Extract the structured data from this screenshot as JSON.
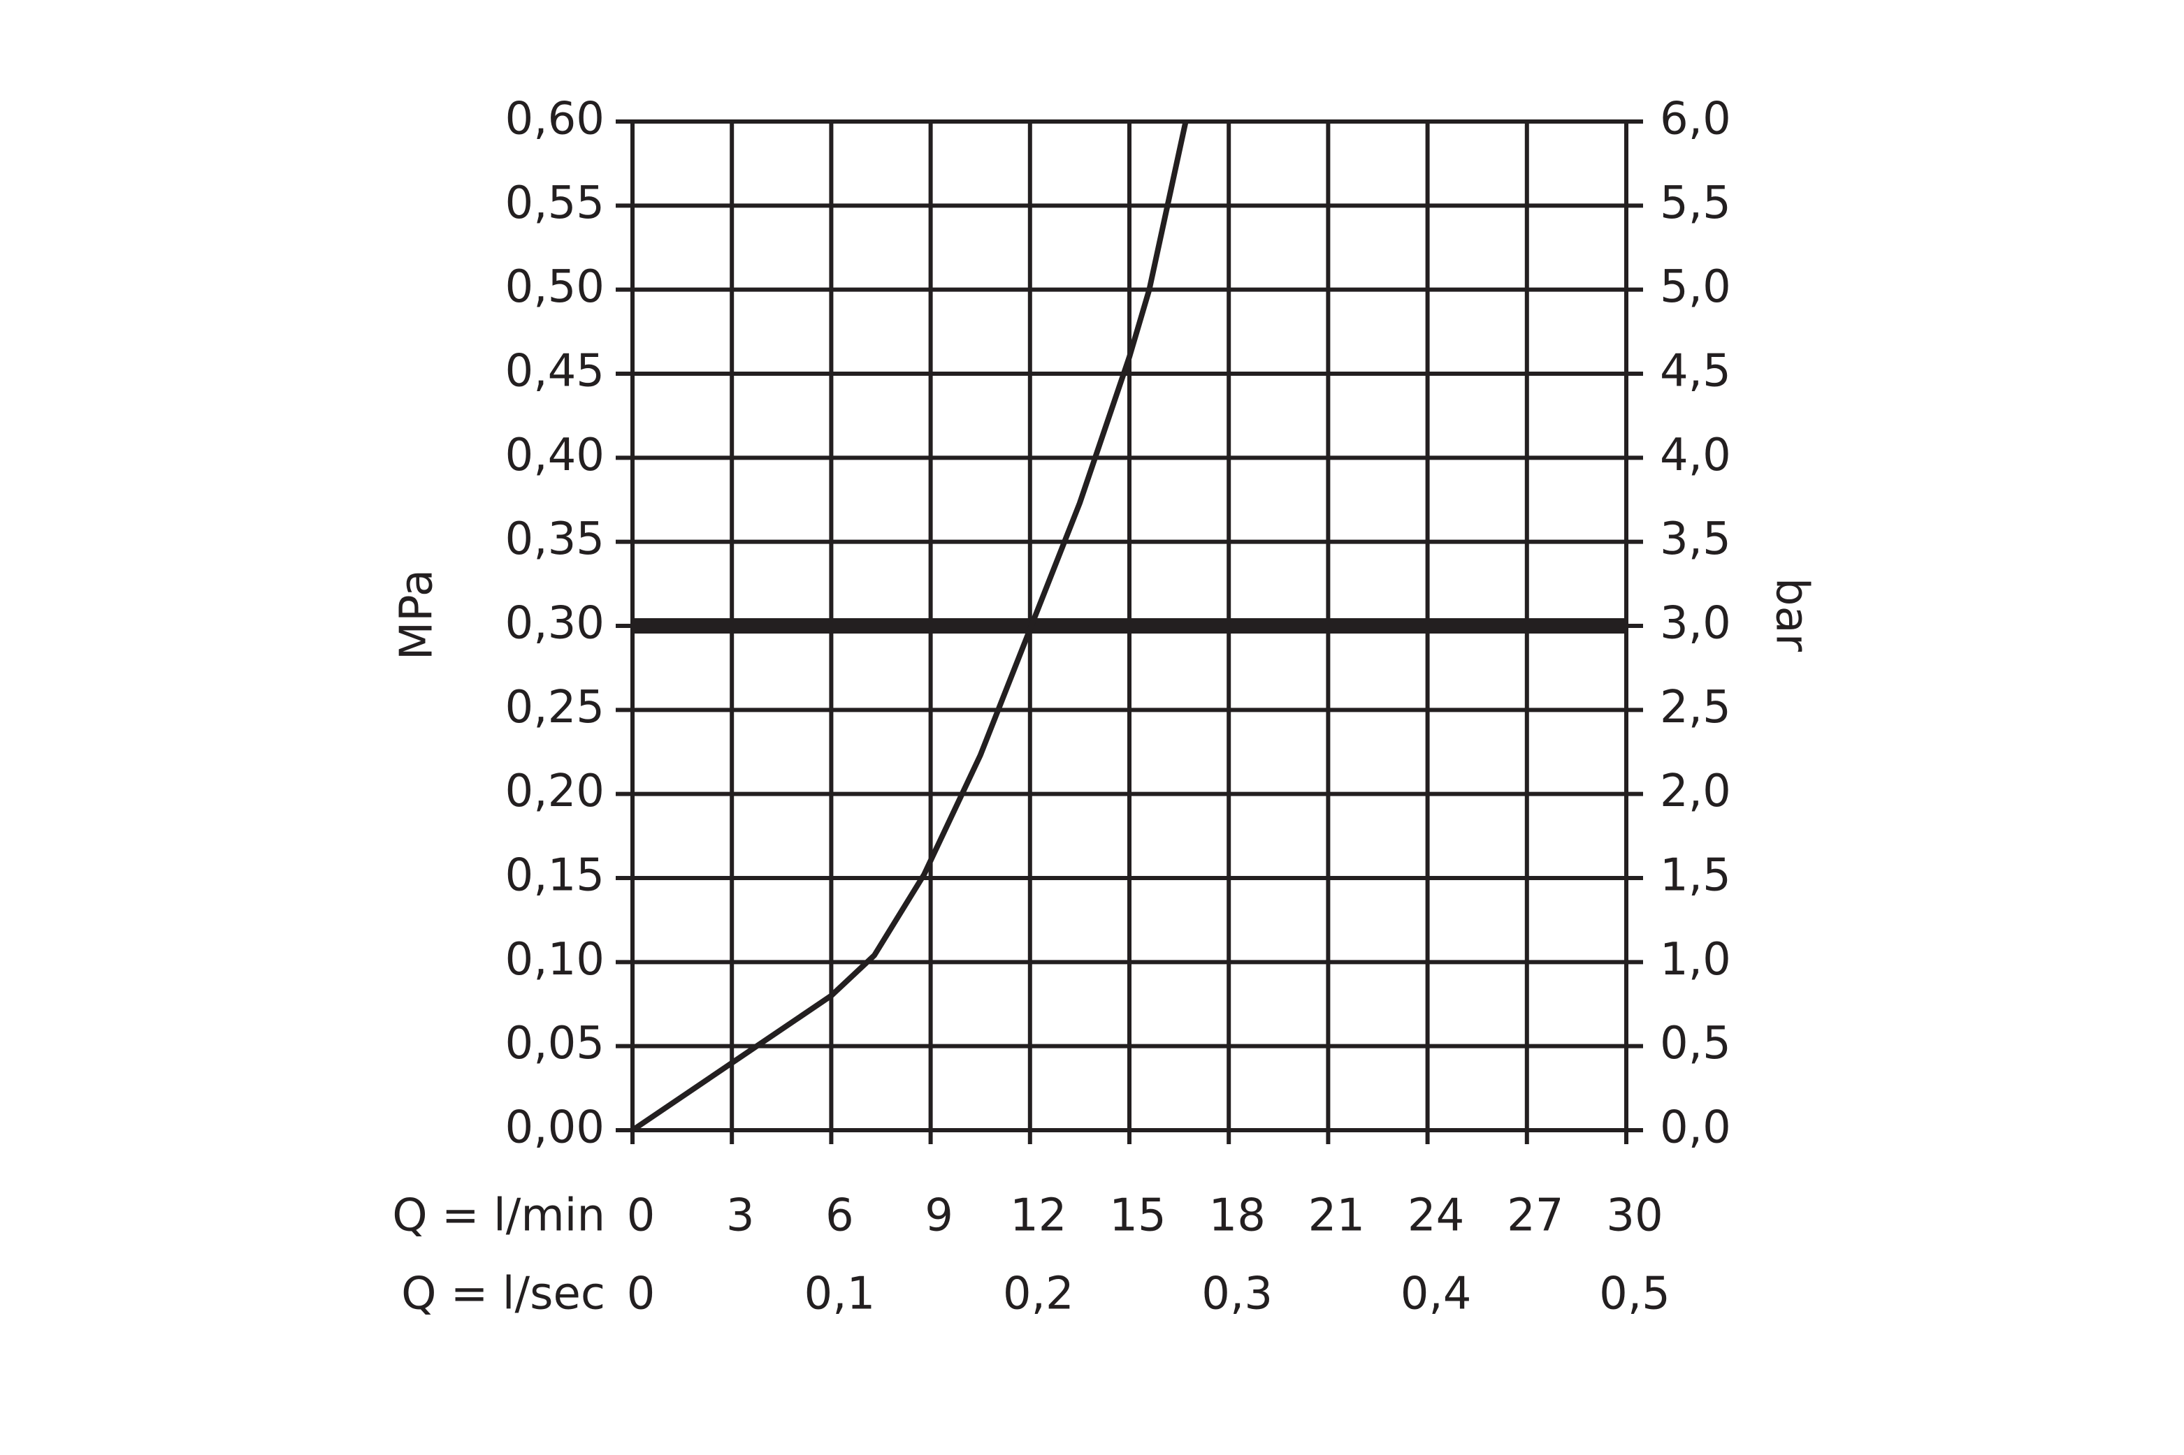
{
  "chart_data": {
    "type": "line",
    "ylabel": "MPa",
    "y2label": "bar",
    "xlabel": "Q = l/min",
    "x2label": "Q = l/sec",
    "xlim": [
      0,
      30
    ],
    "xticks": [
      0,
      3,
      6,
      9,
      12,
      15,
      18,
      21,
      24,
      27,
      30
    ],
    "x2lim": [
      0,
      0.5
    ],
    "x2ticks": [
      0,
      {
        "value": 0.1,
        "label": "0,1"
      },
      {
        "value": 0.2,
        "label": "0,2"
      },
      {
        "value": 0.3,
        "label": "0,3"
      },
      {
        "value": 0.4,
        "label": "0,4"
      },
      {
        "value": 0.5,
        "label": "0,5"
      }
    ],
    "ylim": [
      0,
      0.6
    ],
    "yticks": [
      {
        "value": 0,
        "label": "0,00"
      },
      {
        "value": 0.05,
        "label": "0,05"
      },
      {
        "value": 0.1,
        "label": "0,10"
      },
      {
        "value": 0.15,
        "label": "0,15"
      },
      {
        "value": 0.2,
        "label": "0,20"
      },
      {
        "value": 0.25,
        "label": "0,25"
      },
      {
        "value": 0.3,
        "label": "0,30"
      },
      {
        "value": 0.35,
        "label": "0,35"
      },
      {
        "value": 0.4,
        "label": "0,40"
      },
      {
        "value": 0.45,
        "label": "0,45"
      },
      {
        "value": 0.5,
        "label": "0,50"
      },
      {
        "value": 0.55,
        "label": "0,55"
      },
      {
        "value": 0.6,
        "label": "0,60"
      }
    ],
    "y2lim": [
      0,
      6
    ],
    "y2ticks": [
      {
        "value": 0,
        "label": "0,0"
      },
      {
        "value": 0.5,
        "label": "0,5"
      },
      {
        "value": 1,
        "label": "1,0"
      },
      {
        "value": 1.5,
        "label": "1,5"
      },
      {
        "value": 2,
        "label": "2,0"
      },
      {
        "value": 2.5,
        "label": "2,5"
      },
      {
        "value": 3,
        "label": "3,0"
      },
      {
        "value": 3.5,
        "label": "3,5"
      },
      {
        "value": 4,
        "label": "4,0"
      },
      {
        "value": 4.5,
        "label": "4,5"
      },
      {
        "value": 5,
        "label": "5,0"
      },
      {
        "value": 5.5,
        "label": "5,5"
      },
      {
        "value": 6,
        "label": "6,0"
      }
    ],
    "grid": true,
    "hline": 0.3,
    "vline": 12,
    "series": [
      {
        "color": "#231f20",
        "x": [
          0,
          3,
          6,
          7.3,
          8.8,
          10.5,
          12,
          13.5,
          15,
          15.6,
          16.7
        ],
        "values": [
          0,
          0.04,
          0.08,
          0.104,
          0.152,
          0.223,
          0.298,
          0.373,
          0.46,
          0.5,
          0.6
        ]
      }
    ]
  }
}
